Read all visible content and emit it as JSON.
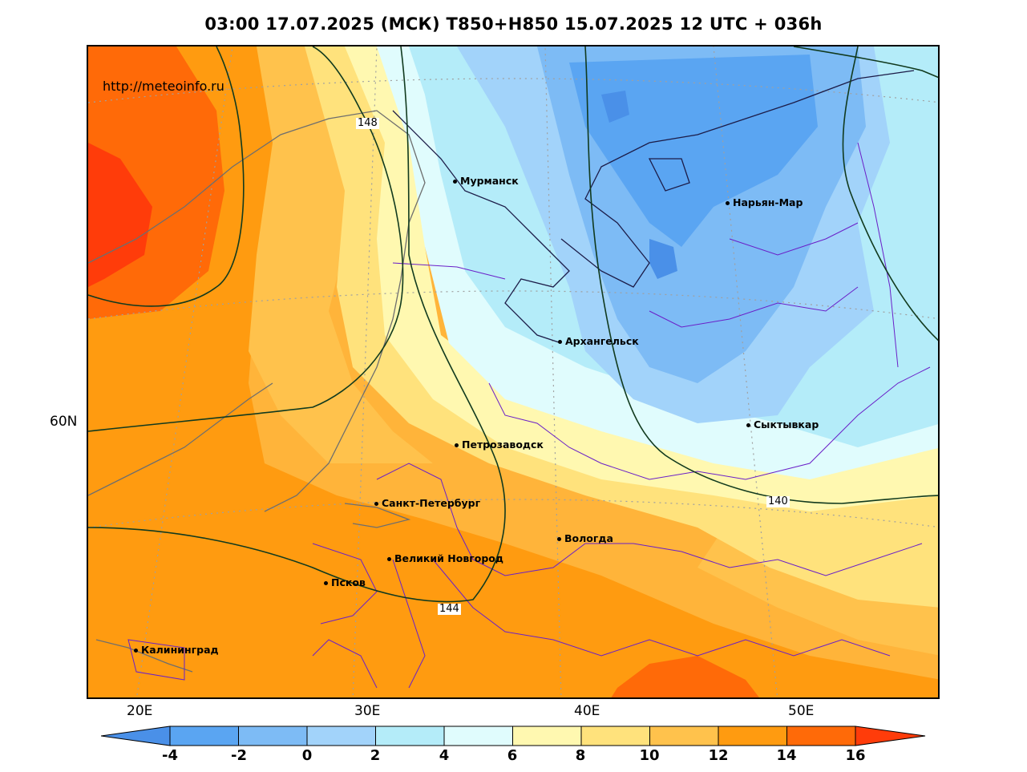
{
  "title": "03:00 17.07.2025 (МСК) T850+H850 15.07.2025 12 UTC + 036h",
  "source_url": "http://meteoinfo.ru",
  "graticule": {
    "lat_labels": [
      "60N"
    ],
    "lon_labels": [
      "20E",
      "30E",
      "40E",
      "50E"
    ]
  },
  "cities": [
    {
      "name": "Мурманск"
    },
    {
      "name": "Нарьян-Мар"
    },
    {
      "name": "Архангельск"
    },
    {
      "name": "Сыктывкар"
    },
    {
      "name": "Петрозаводск"
    },
    {
      "name": "Санкт-Петербург"
    },
    {
      "name": "Вологда"
    },
    {
      "name": "Великий Новгород"
    },
    {
      "name": "Псков"
    },
    {
      "name": "Калининград"
    }
  ],
  "isohypse_labels": [
    "148",
    "140",
    "144"
  ],
  "legend": {
    "levels": [
      "-4",
      "-2",
      "0",
      "2",
      "4",
      "6",
      "8",
      "10",
      "12",
      "14",
      "16"
    ],
    "colors": [
      "#4a90e8",
      "#5aa5f2",
      "#7dbbf5",
      "#a2d3fa",
      "#b4ecf9",
      "#e0fcfd",
      "#fff8b0",
      "#ffe27c",
      "#ffc24c",
      "#ff9b10",
      "#ff6a08",
      "#ff3c0a"
    ]
  },
  "colors": {
    "coast": "#6e6e6e",
    "border": "#6a1fc8",
    "isohypse": "#113a1e",
    "grid": "#a0a0a0"
  }
}
